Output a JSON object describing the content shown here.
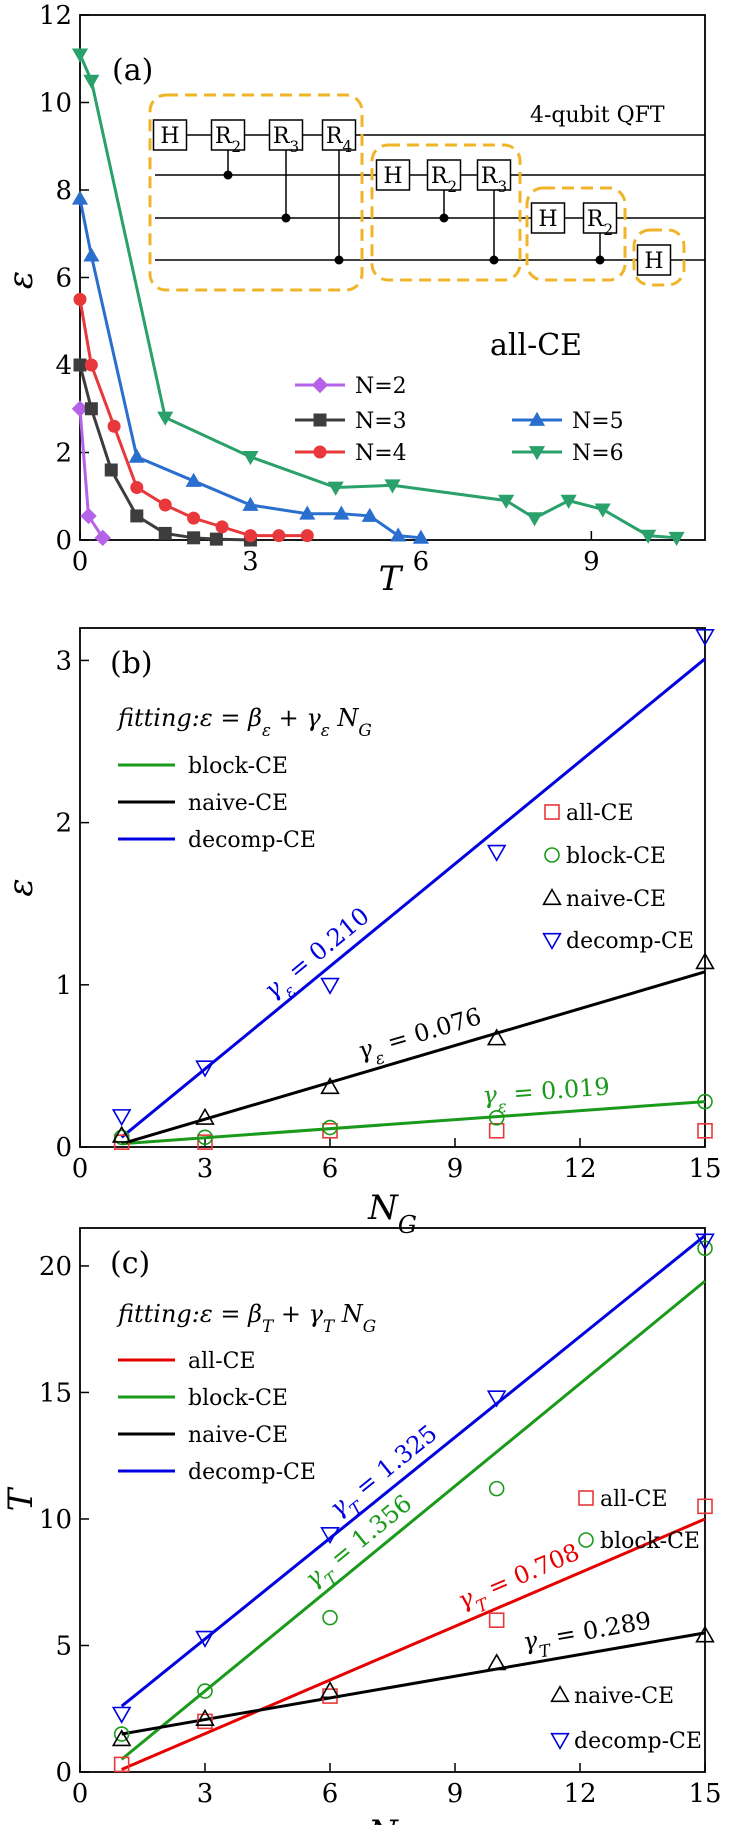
{
  "chart_data": [
    {
      "type": "line",
      "panel_label": "(a)",
      "xlabel": "T",
      "ylabel": "ε",
      "xlim": [
        0,
        11
      ],
      "ylim": [
        0,
        12
      ],
      "xticks": [
        "0",
        "3",
        "6",
        "9"
      ],
      "yticks": [
        "0",
        "2",
        "4",
        "6",
        "8",
        "10",
        "12"
      ],
      "annotation": "all-CE",
      "legend_position": "bottom-center",
      "series": [
        {
          "name": "N=2",
          "marker": "diamond",
          "color": "#b563e8",
          "x": [
            0.0,
            0.15,
            0.4
          ],
          "y": [
            3.0,
            0.55,
            0.05
          ]
        },
        {
          "name": "N=3",
          "marker": "square",
          "color": "#3d3d3d",
          "x": [
            0.0,
            0.2,
            0.55,
            1.0,
            1.5,
            2.0,
            2.4,
            3.0
          ],
          "y": [
            4.0,
            3.0,
            1.6,
            0.55,
            0.15,
            0.05,
            0.02,
            0.0
          ]
        },
        {
          "name": "N=4",
          "marker": "circle",
          "color": "#e8383b",
          "x": [
            0.0,
            0.2,
            0.6,
            1.0,
            1.5,
            2.0,
            2.5,
            3.0,
            3.5,
            4.0
          ],
          "y": [
            5.5,
            4.0,
            2.6,
            1.2,
            0.8,
            0.5,
            0.3,
            0.1,
            0.1,
            0.1
          ]
        },
        {
          "name": "N=5",
          "marker": "triangle-up",
          "color": "#2a6fce",
          "x": [
            0.0,
            0.2,
            1.0,
            2.0,
            3.0,
            4.0,
            4.6,
            5.1,
            5.6,
            6.0
          ],
          "y": [
            7.8,
            6.5,
            1.9,
            1.35,
            0.8,
            0.6,
            0.6,
            0.55,
            0.1,
            0.05
          ]
        },
        {
          "name": "N=6",
          "marker": "triangle-down",
          "color": "#2aa06a",
          "x": [
            0.0,
            0.2,
            1.5,
            3.0,
            4.5,
            5.5,
            7.5,
            8.0,
            8.6,
            9.2,
            10.0,
            10.5
          ],
          "y": [
            11.1,
            10.5,
            2.8,
            1.9,
            1.2,
            1.25,
            0.9,
            0.5,
            0.9,
            0.7,
            0.1,
            0.05
          ]
        }
      ],
      "inset": {
        "title": "4-qubit QFT",
        "blocks": [
          {
            "gates": [
              "H",
              "R2",
              "R3",
              "R4"
            ]
          },
          {
            "gates": [
              "H",
              "R2",
              "R3"
            ]
          },
          {
            "gates": [
              "H",
              "R2"
            ]
          },
          {
            "gates": [
              "H"
            ]
          }
        ]
      }
    },
    {
      "type": "scatter",
      "panel_label": "(b)",
      "xlabel": "N_G",
      "ylabel": "ε",
      "xlim": [
        0,
        15
      ],
      "ylim": [
        0,
        3.2
      ],
      "xticks": [
        "0",
        "3",
        "6",
        "9",
        "12",
        "15"
      ],
      "yticks": [
        "0",
        "1",
        "2",
        "3"
      ],
      "fit_formula": "fitting:ε = β_ε + γ_ε N_G",
      "fit_legend": [
        {
          "name": "block-CE",
          "color": "#1a9a1a"
        },
        {
          "name": "naive-CE",
          "color": "#000000"
        },
        {
          "name": "decomp-CE",
          "color": "#0000e0"
        }
      ],
      "marker_legend": [
        {
          "name": "all-CE",
          "marker": "square",
          "color": "#e8383b"
        },
        {
          "name": "block-CE",
          "marker": "circle",
          "color": "#1a9a1a"
        },
        {
          "name": "naive-CE",
          "marker": "triangle-up",
          "color": "#000000"
        },
        {
          "name": "decomp-CE",
          "marker": "triangle-down",
          "color": "#0000e0"
        }
      ],
      "x": [
        1,
        3,
        6,
        10,
        15
      ],
      "series": [
        {
          "name": "all-CE",
          "marker": "square",
          "color": "#e8383b",
          "values": [
            0.03,
            0.03,
            0.1,
            0.1,
            0.1
          ]
        },
        {
          "name": "block-CE",
          "marker": "circle",
          "color": "#1a9a1a",
          "values": [
            0.06,
            0.06,
            0.12,
            0.18,
            0.28
          ]
        },
        {
          "name": "naive-CE",
          "marker": "triangle-up",
          "color": "#000000",
          "values": [
            0.07,
            0.18,
            0.37,
            0.67,
            1.14
          ]
        },
        {
          "name": "decomp-CE",
          "marker": "triangle-down",
          "color": "#0000e0",
          "values": [
            0.19,
            0.49,
            1.0,
            1.82,
            3.15
          ]
        }
      ],
      "fits": [
        {
          "color": "#1a9a1a",
          "x": [
            1,
            15
          ],
          "y": [
            0.02,
            0.28
          ],
          "label": "γ_ε = 0.019"
        },
        {
          "color": "#000000",
          "x": [
            1,
            15
          ],
          "y": [
            0.02,
            1.08
          ],
          "label": "γ_ε = 0.076"
        },
        {
          "color": "#0000e0",
          "x": [
            1,
            15
          ],
          "y": [
            0.06,
            3.01
          ],
          "label": "γ_ε = 0.210"
        }
      ]
    },
    {
      "type": "scatter",
      "panel_label": "(c)",
      "xlabel": "N_G",
      "ylabel": "T",
      "xlim": [
        0,
        15
      ],
      "ylim": [
        0,
        21.5
      ],
      "xticks": [
        "0",
        "3",
        "6",
        "9",
        "12",
        "15"
      ],
      "yticks": [
        "0",
        "5",
        "10",
        "15",
        "20"
      ],
      "fit_formula": "fitting:ε = β_T + γ_T N_G",
      "fit_legend": [
        {
          "name": "all-CE",
          "color": "#e80000"
        },
        {
          "name": "block-CE",
          "color": "#1a9a1a"
        },
        {
          "name": "naive-CE",
          "color": "#000000"
        },
        {
          "name": "decomp-CE",
          "color": "#0000e0"
        }
      ],
      "marker_legend": [
        {
          "name": "all-CE",
          "marker": "square",
          "color": "#e8383b"
        },
        {
          "name": "block-CE",
          "marker": "circle",
          "color": "#1a9a1a"
        },
        {
          "name": "naive-CE",
          "marker": "triangle-up",
          "color": "#000000"
        },
        {
          "name": "decomp-CE",
          "marker": "triangle-down",
          "color": "#0000e0"
        }
      ],
      "x": [
        1,
        3,
        6,
        10,
        15
      ],
      "series": [
        {
          "name": "all-CE",
          "marker": "square",
          "color": "#e8383b",
          "values": [
            0.3,
            2.0,
            3.0,
            6.0,
            10.5
          ]
        },
        {
          "name": "block-CE",
          "marker": "circle",
          "color": "#1a9a1a",
          "values": [
            1.5,
            3.2,
            6.1,
            11.2,
            20.7
          ]
        },
        {
          "name": "naive-CE",
          "marker": "triangle-up",
          "color": "#000000",
          "values": [
            1.3,
            2.1,
            3.2,
            4.3,
            5.4
          ]
        },
        {
          "name": "decomp-CE",
          "marker": "triangle-down",
          "color": "#0000e0",
          "values": [
            2.3,
            5.3,
            9.4,
            14.8,
            21.0
          ]
        }
      ],
      "fits": [
        {
          "color": "#e80000",
          "x": [
            1,
            15
          ],
          "y": [
            0.1,
            10.0
          ],
          "label": "γ_T = 0.708"
        },
        {
          "color": "#1a9a1a",
          "x": [
            1,
            15
          ],
          "y": [
            0.5,
            19.4
          ],
          "label": "γ_T = 1.356"
        },
        {
          "color": "#000000",
          "x": [
            1,
            15
          ],
          "y": [
            1.5,
            5.5
          ],
          "label": "γ_T = 0.289"
        },
        {
          "color": "#0000e0",
          "x": [
            1,
            15
          ],
          "y": [
            2.6,
            21.2
          ],
          "label": "γ_T = 1.325"
        }
      ]
    }
  ]
}
